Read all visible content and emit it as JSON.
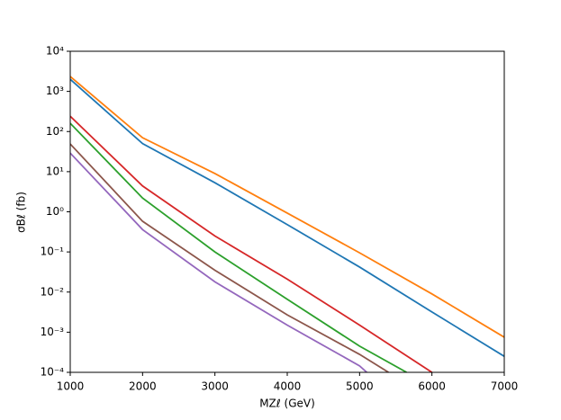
{
  "chart_data": {
    "type": "line",
    "xlabel": "MZℓ (GeV)",
    "ylabel": "σBℓ (fb)",
    "xlim": [
      1000,
      7000
    ],
    "ylim": [
      0.0001,
      10000
    ],
    "log_y": true,
    "xticks": [
      1000,
      2000,
      3000,
      4000,
      5000,
      6000,
      7000
    ],
    "yticks": [
      {
        "value": 0.0001,
        "label": "10⁻⁴"
      },
      {
        "value": 0.001,
        "label": "10⁻³"
      },
      {
        "value": 0.01,
        "label": "10⁻²"
      },
      {
        "value": 0.1,
        "label": "10⁻¹"
      },
      {
        "value": 1,
        "label": "10⁰"
      },
      {
        "value": 10,
        "label": "10¹"
      },
      {
        "value": 100,
        "label": "10²"
      },
      {
        "value": 1000,
        "label": "10³"
      },
      {
        "value": 10000,
        "label": "10⁴"
      }
    ],
    "series": [
      {
        "color": "#ff7f0e",
        "x": [
          1000,
          2000,
          3000,
          4000,
          5000,
          6000,
          7000
        ],
        "values": [
          2350,
          70,
          9,
          0.93,
          0.095,
          0.009,
          0.00075
        ]
      },
      {
        "color": "#1f77b4",
        "x": [
          1000,
          2000,
          3000,
          4000,
          5000,
          6000,
          7000
        ],
        "values": [
          2000,
          50,
          5.3,
          0.48,
          0.042,
          0.0032,
          0.00025
        ]
      },
      {
        "color": "#d62728",
        "x": [
          1000,
          2000,
          3000,
          4000,
          5000,
          6000
        ],
        "values": [
          240,
          4.4,
          0.25,
          0.021,
          0.0015,
          0.0001
        ]
      },
      {
        "color": "#2ca02c",
        "x": [
          1000,
          2000,
          3000,
          4000,
          5000,
          5650
        ],
        "values": [
          160,
          2.2,
          0.1,
          0.0066,
          0.00045,
          0.0001
        ]
      },
      {
        "color": "#8c564b",
        "x": [
          1000,
          2000,
          3000,
          4000,
          5000,
          5400
        ],
        "values": [
          49,
          0.58,
          0.035,
          0.0027,
          0.00028,
          0.0001
        ]
      },
      {
        "color": "#9467bd",
        "x": [
          1000,
          2000,
          3000,
          4000,
          5000,
          5100
        ],
        "values": [
          29,
          0.36,
          0.018,
          0.0015,
          0.000145,
          0.0001
        ]
      }
    ]
  }
}
